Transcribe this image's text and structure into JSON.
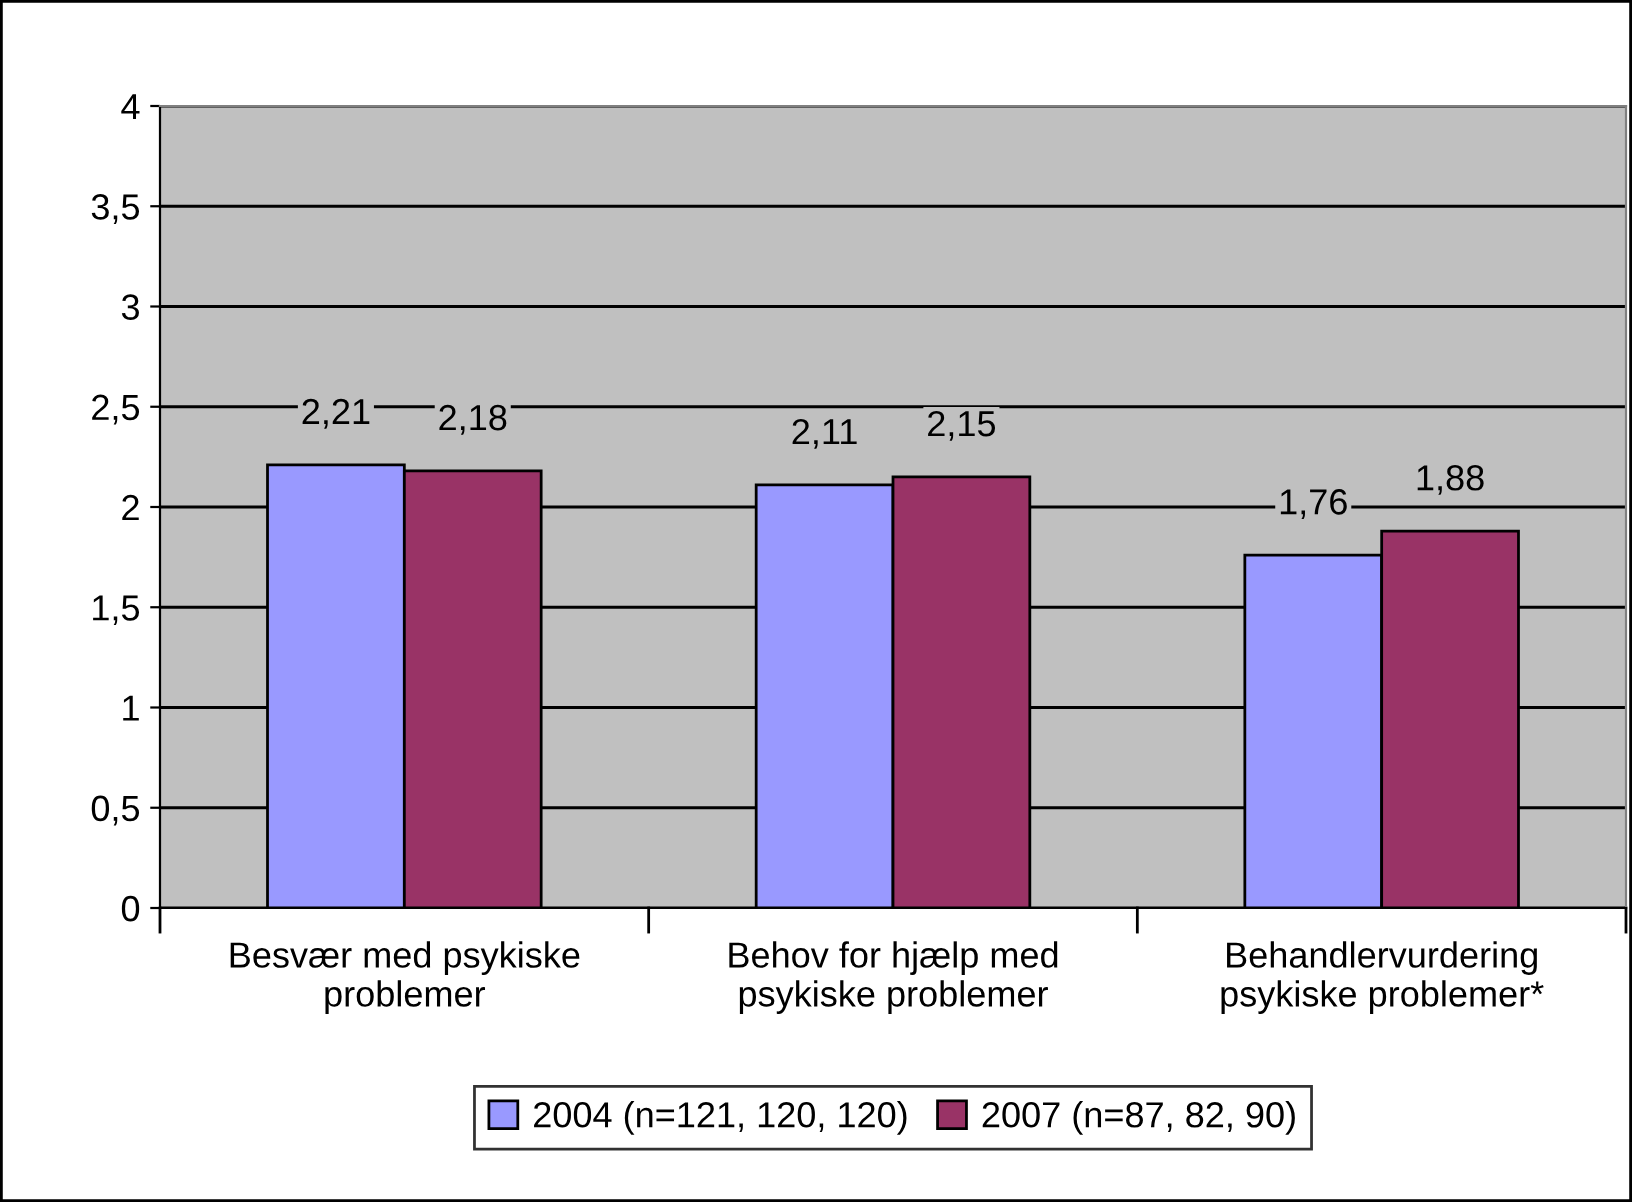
{
  "chart_data": {
    "type": "bar",
    "categories": [
      "Besvær med psykiske\nproblemer",
      "Behov for hjælp med\npsykiske problemer",
      "Behandlervurdering\npsykiske problemer*"
    ],
    "series": [
      {
        "name": "2004 (n=121, 120, 120)",
        "color": "#9999ff",
        "values": [
          2.21,
          2.11,
          1.76
        ],
        "value_labels": [
          "2,21",
          "2,11",
          "1,76"
        ]
      },
      {
        "name": "2007 (n=87, 82, 90)",
        "color": "#993366",
        "values": [
          2.18,
          2.15,
          1.88
        ],
        "value_labels": [
          "2,18",
          "2,15",
          "1,88"
        ]
      }
    ],
    "ylim": [
      0,
      4
    ],
    "yticks": [
      0,
      {
        "value": 0.5,
        "label": "0,5"
      },
      1,
      {
        "value": 1.5,
        "label": "1,5"
      },
      2,
      {
        "value": 2.5,
        "label": "2,5"
      },
      3,
      {
        "value": 3.5,
        "label": "3,5"
      },
      4
    ],
    "grid": "y",
    "legend": "bottom"
  }
}
